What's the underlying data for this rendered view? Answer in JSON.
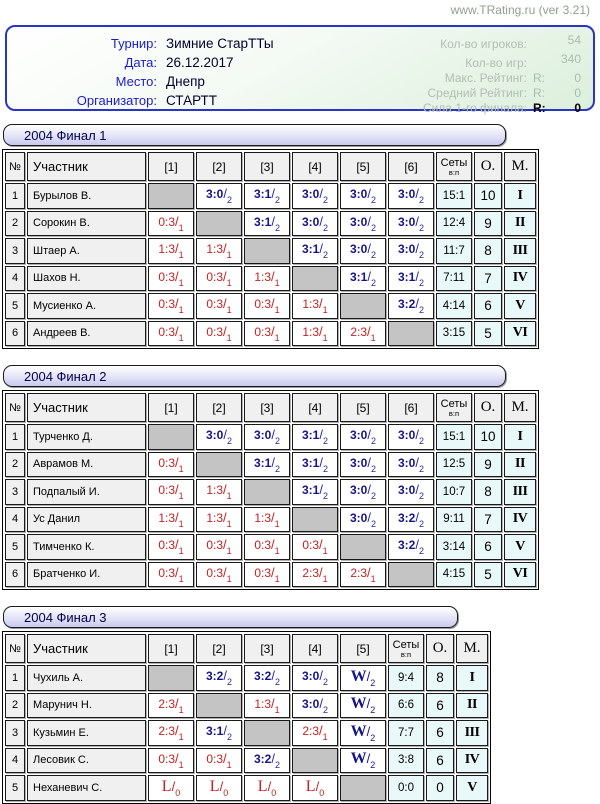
{
  "watermark": "www.TRating.ru (ver 3.21)",
  "colors": {
    "win_score": "#14148c",
    "loss_score": "#c32222",
    "result_bg": "#e9f8f8",
    "header_bg": "#f0f0f0",
    "self_cell": "#c4c4c4",
    "panel_border": "#2a35c8",
    "panel_label": "#1b1bd0",
    "title_text": "#000050"
  },
  "info": {
    "left": [
      {
        "label": "Турнир:",
        "value": "Зимние СтарТТы"
      },
      {
        "label": "Дата:",
        "value": "26.12.2017"
      },
      {
        "label": "Место:",
        "value": "Днепр"
      },
      {
        "label": "Организатор:",
        "value": "СТАРТТ"
      }
    ],
    "right": [
      {
        "label": "Кол-во игроков:",
        "prefix": "",
        "value": "54"
      },
      {
        "label": "Кол-во игр:",
        "prefix": "",
        "value": "340"
      },
      {
        "label": "Макс. Рейтинг:",
        "prefix": "R:",
        "value": "0"
      },
      {
        "label": "Средний Рейтинг:",
        "prefix": "R:",
        "value": "0"
      },
      {
        "label": "Сила 1-го финала:",
        "prefix": "R:",
        "value": "0"
      }
    ]
  },
  "tables": [
    {
      "title": "2004 Финал 1",
      "headers": {
        "num": "№",
        "player": "Участник",
        "opponents": [
          "[1]",
          "[2]",
          "[3]",
          "[4]",
          "[5]",
          "[6]"
        ],
        "sets": "Сеты",
        "sets_sub": "в:п",
        "points": "О.",
        "place": "М."
      },
      "rows": [
        {
          "num": "1",
          "name": "Бурылов В.",
          "games": [
            {
              "r": "self"
            },
            {
              "r": "w",
              "s": "3:0",
              "g": "2"
            },
            {
              "r": "w",
              "s": "3:1",
              "g": "2"
            },
            {
              "r": "w",
              "s": "3:0",
              "g": "2"
            },
            {
              "r": "w",
              "s": "3:0",
              "g": "2"
            },
            {
              "r": "w",
              "s": "3:0",
              "g": "2"
            }
          ],
          "sets": "15:1",
          "points": "10",
          "place": "I"
        },
        {
          "num": "2",
          "name": "Сорокин В.",
          "games": [
            {
              "r": "l",
              "s": "0:3",
              "g": "1"
            },
            {
              "r": "self"
            },
            {
              "r": "w",
              "s": "3:1",
              "g": "2"
            },
            {
              "r": "w",
              "s": "3:0",
              "g": "2"
            },
            {
              "r": "w",
              "s": "3:0",
              "g": "2"
            },
            {
              "r": "w",
              "s": "3:0",
              "g": "2"
            }
          ],
          "sets": "12:4",
          "points": "9",
          "place": "II"
        },
        {
          "num": "3",
          "name": "Штаер А.",
          "games": [
            {
              "r": "l",
              "s": "1:3",
              "g": "1"
            },
            {
              "r": "l",
              "s": "1:3",
              "g": "1"
            },
            {
              "r": "self"
            },
            {
              "r": "w",
              "s": "3:1",
              "g": "2"
            },
            {
              "r": "w",
              "s": "3:0",
              "g": "2"
            },
            {
              "r": "w",
              "s": "3:0",
              "g": "2"
            }
          ],
          "sets": "11:7",
          "points": "8",
          "place": "III"
        },
        {
          "num": "4",
          "name": "Шахов Н.",
          "games": [
            {
              "r": "l",
              "s": "0:3",
              "g": "1"
            },
            {
              "r": "l",
              "s": "0:3",
              "g": "1"
            },
            {
              "r": "l",
              "s": "1:3",
              "g": "1"
            },
            {
              "r": "self"
            },
            {
              "r": "w",
              "s": "3:1",
              "g": "2"
            },
            {
              "r": "w",
              "s": "3:1",
              "g": "2"
            }
          ],
          "sets": "7:11",
          "points": "7",
          "place": "IV"
        },
        {
          "num": "5",
          "name": "Мусиенко А.",
          "games": [
            {
              "r": "l",
              "s": "0:3",
              "g": "1"
            },
            {
              "r": "l",
              "s": "0:3",
              "g": "1"
            },
            {
              "r": "l",
              "s": "0:3",
              "g": "1"
            },
            {
              "r": "l",
              "s": "1:3",
              "g": "1"
            },
            {
              "r": "self"
            },
            {
              "r": "w",
              "s": "3:2",
              "g": "2"
            }
          ],
          "sets": "4:14",
          "points": "6",
          "place": "V"
        },
        {
          "num": "6",
          "name": "Андреев В.",
          "games": [
            {
              "r": "l",
              "s": "0:3",
              "g": "1"
            },
            {
              "r": "l",
              "s": "0:3",
              "g": "1"
            },
            {
              "r": "l",
              "s": "0:3",
              "g": "1"
            },
            {
              "r": "l",
              "s": "1:3",
              "g": "1"
            },
            {
              "r": "l",
              "s": "2:3",
              "g": "1"
            },
            {
              "r": "self"
            }
          ],
          "sets": "3:15",
          "points": "5",
          "place": "VI"
        }
      ]
    },
    {
      "title": "2004 Финал 2",
      "headers": {
        "num": "№",
        "player": "Участник",
        "opponents": [
          "[1]",
          "[2]",
          "[3]",
          "[4]",
          "[5]",
          "[6]"
        ],
        "sets": "Сеты",
        "sets_sub": "в:п",
        "points": "О.",
        "place": "М."
      },
      "rows": [
        {
          "num": "1",
          "name": "Турченко Д.",
          "games": [
            {
              "r": "self"
            },
            {
              "r": "w",
              "s": "3:0",
              "g": "2"
            },
            {
              "r": "w",
              "s": "3:0",
              "g": "2"
            },
            {
              "r": "w",
              "s": "3:1",
              "g": "2"
            },
            {
              "r": "w",
              "s": "3:0",
              "g": "2"
            },
            {
              "r": "w",
              "s": "3:0",
              "g": "2"
            }
          ],
          "sets": "15:1",
          "points": "10",
          "place": "I"
        },
        {
          "num": "2",
          "name": "Аврамов М.",
          "games": [
            {
              "r": "l",
              "s": "0:3",
              "g": "1"
            },
            {
              "r": "self"
            },
            {
              "r": "w",
              "s": "3:1",
              "g": "2"
            },
            {
              "r": "w",
              "s": "3:1",
              "g": "2"
            },
            {
              "r": "w",
              "s": "3:0",
              "g": "2"
            },
            {
              "r": "w",
              "s": "3:0",
              "g": "2"
            }
          ],
          "sets": "12:5",
          "points": "9",
          "place": "II"
        },
        {
          "num": "3",
          "name": "Подпалый И.",
          "games": [
            {
              "r": "l",
              "s": "0:3",
              "g": "1"
            },
            {
              "r": "l",
              "s": "1:3",
              "g": "1"
            },
            {
              "r": "self"
            },
            {
              "r": "w",
              "s": "3:1",
              "g": "2"
            },
            {
              "r": "w",
              "s": "3:0",
              "g": "2"
            },
            {
              "r": "w",
              "s": "3:0",
              "g": "2"
            }
          ],
          "sets": "10:7",
          "points": "8",
          "place": "III"
        },
        {
          "num": "4",
          "name": "Ус Данил",
          "games": [
            {
              "r": "l",
              "s": "1:3",
              "g": "1"
            },
            {
              "r": "l",
              "s": "1:3",
              "g": "1"
            },
            {
              "r": "l",
              "s": "1:3",
              "g": "1"
            },
            {
              "r": "self"
            },
            {
              "r": "w",
              "s": "3:0",
              "g": "2"
            },
            {
              "r": "w",
              "s": "3:2",
              "g": "2"
            }
          ],
          "sets": "9:11",
          "points": "7",
          "place": "IV"
        },
        {
          "num": "5",
          "name": "Тимченко К.",
          "games": [
            {
              "r": "l",
              "s": "0:3",
              "g": "1"
            },
            {
              "r": "l",
              "s": "0:3",
              "g": "1"
            },
            {
              "r": "l",
              "s": "0:3",
              "g": "1"
            },
            {
              "r": "l",
              "s": "0:3",
              "g": "1"
            },
            {
              "r": "self"
            },
            {
              "r": "w",
              "s": "3:2",
              "g": "2"
            }
          ],
          "sets": "3:14",
          "points": "6",
          "place": "V"
        },
        {
          "num": "6",
          "name": "Братченко И.",
          "games": [
            {
              "r": "l",
              "s": "0:3",
              "g": "1"
            },
            {
              "r": "l",
              "s": "0:3",
              "g": "1"
            },
            {
              "r": "l",
              "s": "0:3",
              "g": "1"
            },
            {
              "r": "l",
              "s": "2:3",
              "g": "1"
            },
            {
              "r": "l",
              "s": "2:3",
              "g": "1"
            },
            {
              "r": "self"
            }
          ],
          "sets": "4:15",
          "points": "5",
          "place": "VI"
        }
      ]
    },
    {
      "title": "2004 Финал 3",
      "headers": {
        "num": "№",
        "player": "Участник",
        "opponents": [
          "[1]",
          "[2]",
          "[3]",
          "[4]",
          "[5]"
        ],
        "sets": "Сеты",
        "sets_sub": "в:п",
        "points": "О.",
        "place": "М."
      },
      "rows": [
        {
          "num": "1",
          "name": "Чухиль А.",
          "games": [
            {
              "r": "self"
            },
            {
              "r": "w",
              "s": "3:2",
              "g": "2"
            },
            {
              "r": "w",
              "s": "3:2",
              "g": "2"
            },
            {
              "r": "w",
              "s": "3:0",
              "g": "2"
            },
            {
              "r": "W",
              "s": "W",
              "g": "2"
            }
          ],
          "sets": "9:4",
          "points": "8",
          "place": "I"
        },
        {
          "num": "2",
          "name": "Марунич Н.",
          "games": [
            {
              "r": "l",
              "s": "2:3",
              "g": "1"
            },
            {
              "r": "self"
            },
            {
              "r": "l",
              "s": "1:3",
              "g": "1"
            },
            {
              "r": "w",
              "s": "3:0",
              "g": "2"
            },
            {
              "r": "W",
              "s": "W",
              "g": "2"
            }
          ],
          "sets": "6:6",
          "points": "6",
          "place": "II"
        },
        {
          "num": "3",
          "name": "Кузьмин Е.",
          "games": [
            {
              "r": "l",
              "s": "2:3",
              "g": "1"
            },
            {
              "r": "w",
              "s": "3:1",
              "g": "2"
            },
            {
              "r": "self"
            },
            {
              "r": "l",
              "s": "2:3",
              "g": "1"
            },
            {
              "r": "W",
              "s": "W",
              "g": "2"
            }
          ],
          "sets": "7:7",
          "points": "6",
          "place": "III"
        },
        {
          "num": "4",
          "name": "Лесовик С.",
          "games": [
            {
              "r": "l",
              "s": "0:3",
              "g": "1"
            },
            {
              "r": "l",
              "s": "0:3",
              "g": "1"
            },
            {
              "r": "w",
              "s": "3:2",
              "g": "2"
            },
            {
              "r": "self"
            },
            {
              "r": "W",
              "s": "W",
              "g": "2"
            }
          ],
          "sets": "3:8",
          "points": "6",
          "place": "IV"
        },
        {
          "num": "5",
          "name": "Неханевич С.",
          "games": [
            {
              "r": "L",
              "s": "L",
              "g": "0"
            },
            {
              "r": "L",
              "s": "L",
              "g": "0"
            },
            {
              "r": "L",
              "s": "L",
              "g": "0"
            },
            {
              "r": "L",
              "s": "L",
              "g": "0"
            },
            {
              "r": "self"
            }
          ],
          "sets": "0:0",
          "points": "0",
          "place": "V"
        }
      ]
    }
  ]
}
